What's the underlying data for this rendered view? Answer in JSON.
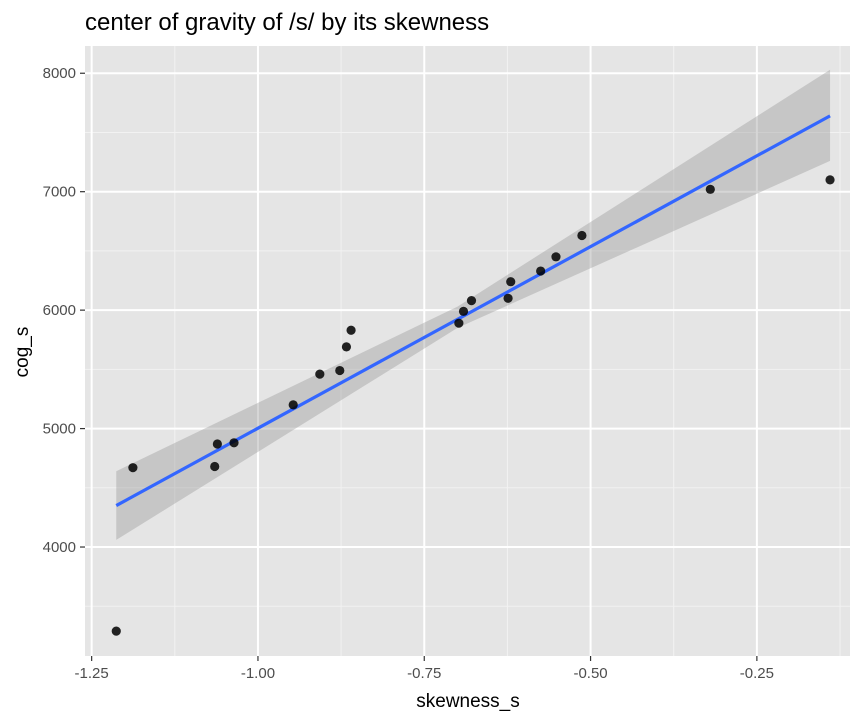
{
  "chart_data": {
    "type": "scatter",
    "title": "center of gravity of /s/ by its skewness",
    "xlabel": "skewness_s",
    "ylabel": "cog_s",
    "xlim": [
      -1.26,
      -0.11
    ],
    "ylim": [
      3080,
      8230
    ],
    "x_ticks": [
      -1.25,
      -1.0,
      -0.75,
      -0.5,
      -0.25
    ],
    "x_tick_labels": [
      "-1.25",
      "-1.00",
      "-0.75",
      "-0.50",
      "-0.25"
    ],
    "x_minor_ticks": [
      -1.125,
      -0.875,
      -0.625,
      -0.375,
      -0.125
    ],
    "y_ticks": [
      4000,
      5000,
      6000,
      7000,
      8000
    ],
    "y_tick_labels": [
      "4000",
      "5000",
      "6000",
      "7000",
      "8000"
    ],
    "y_minor_ticks": [
      3500,
      4500,
      5500,
      6500,
      7500
    ],
    "grid": true,
    "points": [
      {
        "x": -1.213,
        "y": 3290
      },
      {
        "x": -1.188,
        "y": 4670
      },
      {
        "x": -1.065,
        "y": 4680
      },
      {
        "x": -1.061,
        "y": 4870
      },
      {
        "x": -1.036,
        "y": 4880
      },
      {
        "x": -0.947,
        "y": 5200
      },
      {
        "x": -0.907,
        "y": 5460
      },
      {
        "x": -0.877,
        "y": 5490
      },
      {
        "x": -0.867,
        "y": 5690
      },
      {
        "x": -0.86,
        "y": 5830
      },
      {
        "x": -0.698,
        "y": 5890
      },
      {
        "x": -0.691,
        "y": 5990
      },
      {
        "x": -0.679,
        "y": 6080
      },
      {
        "x": -0.624,
        "y": 6100
      },
      {
        "x": -0.62,
        "y": 6240
      },
      {
        "x": -0.575,
        "y": 6330
      },
      {
        "x": -0.552,
        "y": 6450
      },
      {
        "x": -0.513,
        "y": 6630
      },
      {
        "x": -0.32,
        "y": 7020
      },
      {
        "x": -0.14,
        "y": 7100
      }
    ],
    "fit_line": {
      "method": "linear",
      "x": [
        -1.213,
        -0.14
      ],
      "y": [
        4350,
        7640
      ],
      "ci_lower": [
        4060,
        7260
      ],
      "ci_upper": [
        4640,
        8030
      ],
      "ci_mid_x": -0.7,
      "ci_mid_lower": [
        5850
      ],
      "ci_mid_upper": [
        6030
      ]
    },
    "colors": {
      "panel_background": "#e5e5e5",
      "grid_major": "#ffffff",
      "grid_minor": "#f2f2f2",
      "point": "#000000",
      "line": "#3366ff",
      "ribbon": "#999999"
    }
  }
}
